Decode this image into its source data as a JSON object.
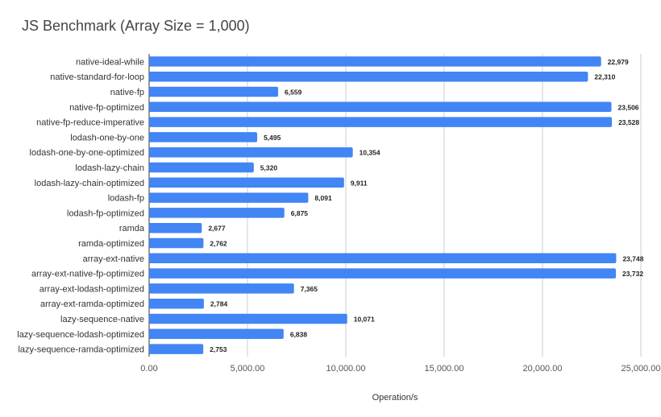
{
  "chart_data": {
    "type": "bar",
    "orientation": "horizontal",
    "title": "JS Benchmark (Array Size = 1,000)",
    "xlabel": "Operation/s",
    "ylabel": "",
    "xlim": [
      0,
      25000
    ],
    "x_ticks": [
      0,
      5000,
      10000,
      15000,
      20000,
      25000
    ],
    "x_tick_labels": [
      "0.00",
      "5,000.00",
      "10,000.00",
      "15,000.00",
      "20,000.00",
      "25,000.00"
    ],
    "grid": "vertical",
    "bar_color": "#4285f4",
    "categories": [
      "native-ideal-while",
      "native-standard-for-loop",
      "native-fp",
      "native-fp-optimized",
      "native-fp-reduce-imperative",
      "lodash-one-by-one",
      "lodash-one-by-one-optimized",
      "lodash-lazy-chain",
      "lodash-lazy-chain-optimized",
      "lodash-fp",
      "lodash-fp-optimized",
      "ramda",
      "ramda-optimized",
      "array-ext-native",
      "array-ext-native-fp-optimized",
      "array-ext-lodash-optimized",
      "array-ext-ramda-optimized",
      "lazy-sequence-native",
      "lazy-sequence-lodash-optimized",
      "lazy-sequence-ramda-optimized"
    ],
    "values": [
      22979,
      22310,
      6559,
      23506,
      23528,
      5495,
      10354,
      5320,
      9911,
      8091,
      6875,
      2677,
      2762,
      23748,
      23732,
      7365,
      2784,
      10071,
      6838,
      2753
    ],
    "value_labels": [
      "22,979",
      "22,310",
      "6,559",
      "23,506",
      "23,528",
      "5,495",
      "10,354",
      "5,320",
      "9,911",
      "8,091",
      "6,875",
      "2,677",
      "2,762",
      "23,748",
      "23,732",
      "7,365",
      "2,784",
      "10,071",
      "6,838",
      "2,753"
    ]
  }
}
